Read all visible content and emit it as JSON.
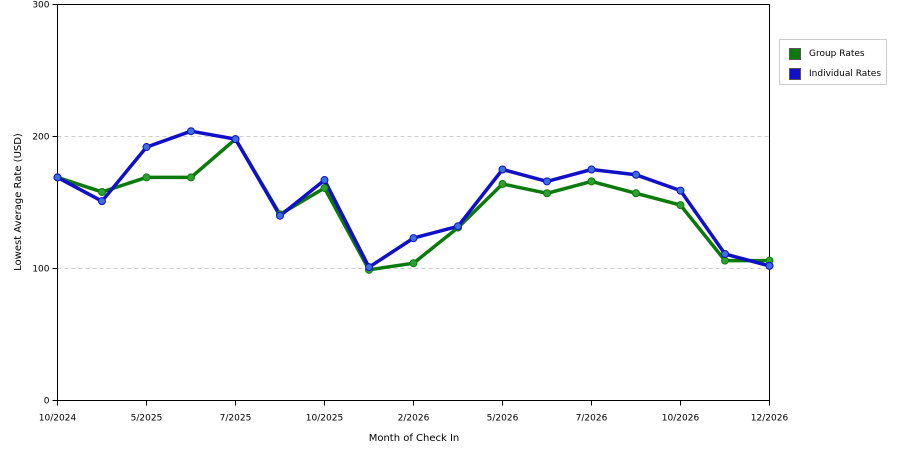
{
  "chart_data": {
    "type": "line",
    "title": "",
    "xlabel": "Month of Check In",
    "ylabel": "Lowest Average Rate (USD)",
    "ylim": [
      0,
      300
    ],
    "y_ticks": [
      0,
      100,
      200,
      300
    ],
    "grid": true,
    "legend_position": "right",
    "x_tick_labels": [
      {
        "label": "10/2024",
        "index": 0
      },
      {
        "label": "5/2025",
        "index": 2
      },
      {
        "label": "7/2025",
        "index": 4
      },
      {
        "label": "10/2025",
        "index": 6
      },
      {
        "label": "2/2026",
        "index": 8
      },
      {
        "label": "5/2026",
        "index": 10
      },
      {
        "label": "7/2026",
        "index": 12
      },
      {
        "label": "10/2026",
        "index": 14
      },
      {
        "label": "12/2026",
        "index": 16
      }
    ],
    "series": [
      {
        "name": "Group Rates",
        "color": "#0b7a0b",
        "marker_color": "#2fa02f",
        "values": [
          169,
          158,
          169,
          169,
          198,
          141,
          161,
          99,
          104,
          131,
          164,
          157,
          166,
          157,
          148,
          106,
          106
        ]
      },
      {
        "name": "Individual Rates",
        "color": "#1010c8",
        "marker_color": "#3b6fe0",
        "values": [
          169,
          151,
          192,
          204,
          198,
          140,
          167,
          101,
          123,
          132,
          175,
          166,
          175,
          171,
          159,
          111,
          102
        ]
      }
    ]
  }
}
